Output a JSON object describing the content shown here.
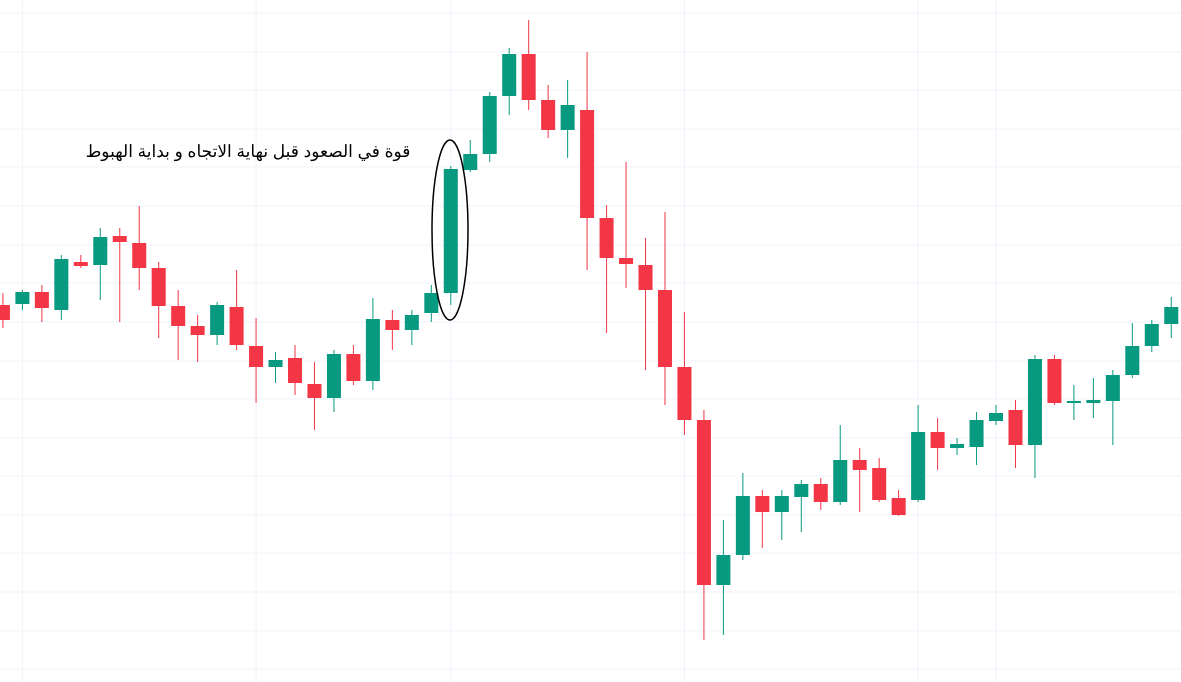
{
  "chart_data": {
    "type": "candlestick",
    "annotation": "قوة في الصعود قبل نهاية الاتجاه و بداية الهبوط",
    "up_color": "#089981",
    "down_color": "#f23645",
    "open": [
      377,
      378,
      390,
      372,
      420,
      417,
      446,
      439,
      414,
      376,
      356,
      347,
      375,
      336,
      315,
      324,
      298,
      284,
      328,
      301,
      362,
      352,
      369,
      389,
      512,
      528,
      586,
      628,
      582,
      552,
      572,
      464,
      424,
      417,
      392,
      315,
      262,
      97,
      127,
      186,
      170,
      185,
      198,
      180,
      222,
      214,
      184,
      182,
      250,
      234,
      235,
      261,
      272,
      237,
      323,
      279,
      279,
      281,
      307,
      336,
      358
    ],
    "high": [
      389,
      392,
      397,
      427,
      427,
      454,
      454,
      476,
      420,
      392,
      367,
      380,
      412,
      364,
      330,
      337,
      320,
      332,
      337,
      384,
      372,
      372,
      397,
      516,
      542,
      590,
      634,
      662,
      597,
      602,
      630,
      477,
      520,
      444,
      470,
      370,
      272,
      162,
      209,
      192,
      192,
      202,
      204,
      257,
      234,
      224,
      192,
      277,
      264,
      244,
      270,
      277,
      282,
      327,
      327,
      297,
      304,
      312,
      359,
      362,
      385
    ],
    "low": [
      354,
      372,
      360,
      362,
      414,
      382,
      360,
      392,
      344,
      322,
      320,
      337,
      332,
      279,
      299,
      287,
      252,
      270,
      297,
      292,
      332,
      337,
      360,
      377,
      510,
      520,
      567,
      572,
      544,
      524,
      412,
      349,
      394,
      312,
      277,
      247,
      42,
      47,
      122,
      134,
      142,
      150,
      172,
      177,
      170,
      180,
      166,
      180,
      212,
      227,
      217,
      257,
      214,
      204,
      277,
      262,
      264,
      237,
      304,
      330,
      344
    ],
    "close": [
      362,
      390,
      374,
      423,
      416,
      445,
      440,
      414,
      376,
      356,
      347,
      377,
      337,
      315,
      322,
      299,
      284,
      328,
      301,
      363,
      352,
      367,
      389,
      513,
      528,
      586,
      628,
      582,
      552,
      577,
      464,
      424,
      418,
      392,
      315,
      262,
      97,
      127,
      186,
      170,
      186,
      198,
      180,
      222,
      212,
      182,
      167,
      250,
      234,
      238,
      262,
      269,
      237,
      323,
      279,
      281,
      282,
      307,
      336,
      358,
      375
    ],
    "xlim": [
      -0.15,
      60.5
    ],
    "ylim": [
      0,
      682
    ],
    "xticks": [
      1,
      13,
      23,
      35,
      47,
      51
    ],
    "yticks": [
      13,
      51,
      90,
      129,
      167,
      206,
      244,
      283,
      321,
      360,
      399,
      437,
      476,
      515,
      553,
      592,
      630,
      669
    ],
    "grid": true
  }
}
